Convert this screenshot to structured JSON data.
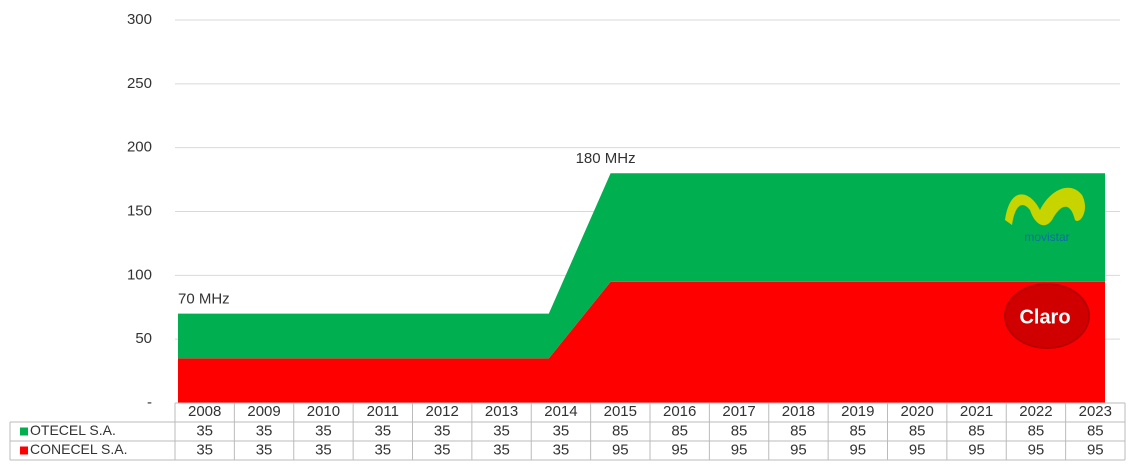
{
  "chart_data": {
    "type": "stacked_area",
    "categories": [
      "2008",
      "2009",
      "2010",
      "2011",
      "2012",
      "2013",
      "2014",
      "2015",
      "2016",
      "2017",
      "2018",
      "2019",
      "2020",
      "2021",
      "2022",
      "2023"
    ],
    "series": [
      {
        "name": "CONECEL S.A.",
        "color": "#ff0000",
        "values": [
          35,
          35,
          35,
          35,
          35,
          35,
          35,
          95,
          95,
          95,
          95,
          95,
          95,
          95,
          95,
          95
        ]
      },
      {
        "name": "OTECEL S.A.",
        "color": "#00b050",
        "values": [
          35,
          35,
          35,
          35,
          35,
          35,
          35,
          85,
          85,
          85,
          85,
          85,
          85,
          85,
          85,
          85
        ]
      }
    ],
    "ylim": [
      0,
      300
    ],
    "yticks": [
      {
        "value": 0,
        "label": "-"
      },
      50,
      100,
      150,
      200,
      250,
      300
    ],
    "grid": true,
    "annotations": [
      {
        "text": "70 MHz",
        "index": 0
      },
      {
        "text": "180 MHz",
        "index": 7
      }
    ],
    "logo_labels": [
      "movistar",
      "Claro"
    ]
  }
}
